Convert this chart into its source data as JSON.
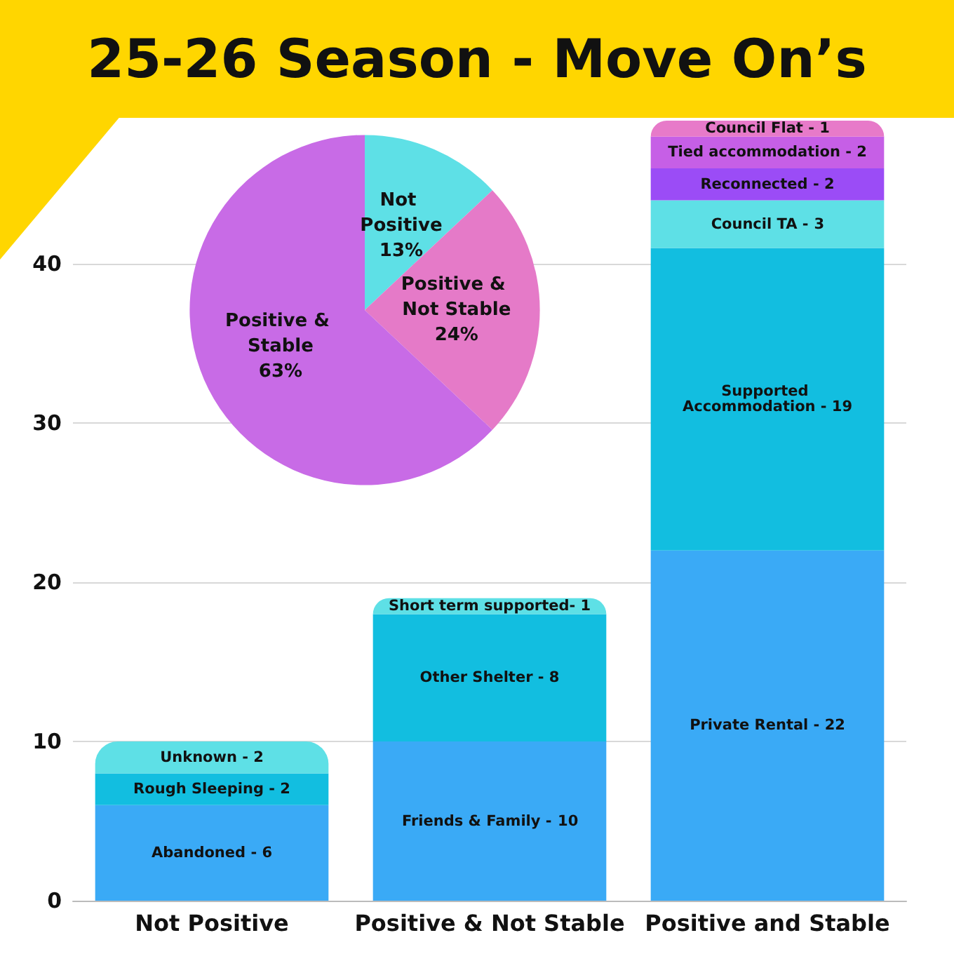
{
  "chart_data": [
    {
      "type": "bar",
      "title": "25-26 Season - Move On’s",
      "categories": [
        "Not Positive",
        "Positive & Not Stable",
        "Positive and Stable"
      ],
      "stacked": true,
      "ylim": [
        0,
        49
      ],
      "yticks": [
        0,
        10,
        20,
        30,
        40
      ],
      "grid": "y",
      "data_labels": true,
      "series": [
        {
          "name": "Abandoned -",
          "color": "#3aaaf6",
          "values": [
            6,
            null,
            null
          ]
        },
        {
          "name": "Friends & Family -",
          "color": "#3aaaf6",
          "values": [
            null,
            10,
            null
          ]
        },
        {
          "name": "Private Rental -",
          "color": "#3aaaf6",
          "values": [
            null,
            null,
            22
          ]
        },
        {
          "name": "Rough Sleeping -",
          "color": "#12bee0",
          "values": [
            2,
            null,
            null
          ]
        },
        {
          "name": "Other Shelter -",
          "color": "#12bee0",
          "values": [
            null,
            8,
            null
          ]
        },
        {
          "name": "Supported Accommodation -",
          "color": "#12bee0",
          "values": [
            null,
            null,
            19
          ]
        },
        {
          "name": "Unknown -",
          "color": "#5ee0e6",
          "values": [
            2,
            null,
            null
          ]
        },
        {
          "name": "Short term supported-",
          "color": "#5ee0e6",
          "values": [
            null,
            1,
            null
          ]
        },
        {
          "name": "Council TA -",
          "color": "#5ee0e6",
          "values": [
            null,
            null,
            3
          ]
        },
        {
          "name": "Reconnected -",
          "color": "#9b4cf6",
          "values": [
            null,
            null,
            2
          ]
        },
        {
          "name": "Tied accommodation -",
          "color": "#c65fe6",
          "values": [
            null,
            null,
            2
          ]
        },
        {
          "name": "Council Flat -",
          "color": "#e77ac9",
          "values": [
            null,
            null,
            1
          ]
        }
      ]
    },
    {
      "type": "pie",
      "categories": [
        "Not Positive",
        "Positive & Not Stable",
        "Positive & Stable"
      ],
      "values": [
        13,
        24,
        63
      ],
      "colors": [
        "#5ee0e6",
        "#e57ac8",
        "#c86be6"
      ],
      "value_labels": [
        "13%",
        "24%",
        "63%"
      ]
    }
  ]
}
